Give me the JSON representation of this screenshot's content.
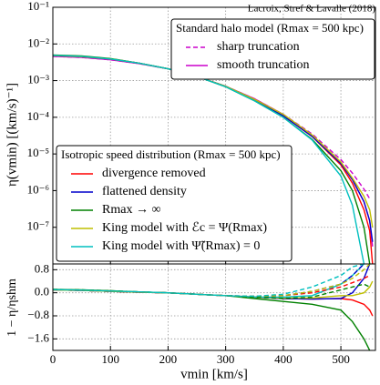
{
  "chart_data": [
    {
      "type": "line",
      "log_y": true,
      "grid": true,
      "annotation": "Lacroix, Stref & Lavalle (2018)",
      "y_label": "η(vmin) [(km/s)⁻¹]",
      "legend_titles": [
        "Standard halo model (Rmax = 500 kpc)",
        "Isotropic speed distribution (Rmax = 500 kpc)"
      ],
      "x": [
        0,
        50,
        100,
        150,
        200,
        250,
        300,
        350,
        400,
        450,
        500,
        520,
        540,
        550,
        555
      ],
      "xlim": [
        0,
        560
      ],
      "ylim": [
        1e-08,
        0.1
      ],
      "yticks": [
        {
          "value": 0.1,
          "label": "10⁻¹"
        },
        {
          "value": 0.01,
          "label": "10⁻²"
        },
        {
          "value": 0.001,
          "label": "10⁻³"
        },
        {
          "value": 0.0001,
          "label": "10⁻⁴"
        },
        {
          "value": 1e-05,
          "label": "10⁻⁵"
        },
        {
          "value": 1e-06,
          "label": "10⁻⁶"
        },
        {
          "value": 1e-07,
          "label": "10⁻⁷"
        }
      ],
      "series": [
        {
          "name": "sharp truncation",
          "color": "#cc00cc",
          "dash": true,
          "legend": 0,
          "values": [
            0.0046,
            0.0043,
            0.0037,
            0.0029,
            0.0021,
            0.0013,
            0.0007,
            0.00032,
            0.00012,
            3.5e-05,
            7e-06,
            3e-06,
            1.1e-06,
            6e-07,
            null
          ]
        },
        {
          "name": "smooth truncation",
          "color": "#cc00cc",
          "dash": false,
          "legend": 0,
          "values": [
            0.0046,
            0.0043,
            0.0037,
            0.0029,
            0.0021,
            0.0013,
            0.0007,
            0.00032,
            0.00012,
            3.2e-05,
            5.5e-06,
            2e-06,
            5e-07,
            1.5e-07,
            3e-08
          ]
        },
        {
          "name": "divergence removed",
          "color": "#ff0000",
          "dash": false,
          "legend": 1,
          "values": [
            0.0048,
            0.0045,
            0.0039,
            0.003,
            0.0021,
            0.0013,
            0.0007,
            0.0003,
            0.00011,
            3e-05,
            5e-06,
            1.6e-06,
            3e-07,
            8e-08,
            1e-08
          ]
        },
        {
          "name": "flattened density",
          "color": "#0000cc",
          "dash": false,
          "legend": 1,
          "values": [
            0.0048,
            0.0045,
            0.0039,
            0.003,
            0.0021,
            0.0013,
            0.0007,
            0.0003,
            0.00011,
            3e-05,
            5.5e-06,
            2e-06,
            5e-07,
            1.5e-07,
            4e-08
          ]
        },
        {
          "name": "Rmax → ∞",
          "color": "#008000",
          "dash": false,
          "legend": 1,
          "values": [
            0.005,
            0.0047,
            0.004,
            0.003,
            0.0021,
            0.0013,
            0.00068,
            0.00028,
            0.0001,
            2.5e-05,
            3.5e-06,
            1e-06,
            1e-07,
            1e-08,
            null
          ]
        },
        {
          "name": "King model with ℰc = Ψ(Rmax)",
          "color": "#bfbf00",
          "dash": false,
          "legend": 1,
          "values": [
            0.0048,
            0.0045,
            0.0039,
            0.003,
            0.0021,
            0.0013,
            0.0007,
            0.00031,
            0.00012,
            3.3e-05,
            6e-06,
            2.2e-06,
            7e-07,
            3e-07,
            1e-07
          ]
        },
        {
          "name": "King model with Ψ̃(Rmax) = 0",
          "color": "#00bfbf",
          "dash": false,
          "legend": 1,
          "values": [
            0.0049,
            0.0046,
            0.0039,
            0.003,
            0.0021,
            0.0013,
            0.00068,
            0.00028,
            0.0001,
            2.4e-05,
            2.5e-06,
            4e-07,
            1e-08,
            null,
            null
          ]
        }
      ]
    },
    {
      "type": "line",
      "log_y": false,
      "grid": true,
      "x_label": "vmin [km/s]",
      "y_label": "1 − η/ηshm",
      "x": [
        0,
        50,
        100,
        150,
        200,
        250,
        300,
        350,
        400,
        450,
        500,
        520,
        540,
        550,
        555
      ],
      "xlim": [
        0,
        560
      ],
      "xticks": [
        0,
        100,
        200,
        300,
        400,
        500
      ],
      "ylim": [
        -2.0,
        1.0
      ],
      "yticks": [
        {
          "value": 0.8,
          "label": "0.8"
        },
        {
          "value": 0,
          "label": "0.0"
        },
        {
          "value": -0.8,
          "label": "−0.8"
        },
        {
          "value": -1.6,
          "label": "−1.6"
        }
      ],
      "series": [
        {
          "color": "#ff0000",
          "dash": false,
          "values": [
            0.1,
            0.08,
            0.05,
            0.02,
            0.0,
            -0.05,
            -0.1,
            -0.15,
            -0.2,
            -0.22,
            -0.2,
            -0.25,
            -0.4,
            -0.6,
            -0.8
          ]
        },
        {
          "color": "#0000cc",
          "dash": false,
          "values": [
            0.1,
            0.08,
            0.05,
            0.02,
            0.0,
            -0.05,
            -0.1,
            -0.15,
            -0.2,
            -0.22,
            -0.2,
            0.0,
            0.5,
            1.0,
            null
          ]
        },
        {
          "color": "#008000",
          "dash": false,
          "values": [
            0.12,
            0.1,
            0.07,
            0.03,
            0.0,
            -0.05,
            -0.1,
            -0.2,
            -0.3,
            -0.4,
            -0.6,
            -1.0,
            -1.6,
            -2.0,
            null
          ]
        },
        {
          "color": "#bfbf00",
          "dash": false,
          "values": [
            0.1,
            0.08,
            0.05,
            0.02,
            0.0,
            -0.05,
            -0.1,
            -0.15,
            -0.18,
            -0.18,
            -0.1,
            -0.1,
            0.0,
            0.2,
            0.4
          ]
        },
        {
          "color": "#00bfbf",
          "dash": false,
          "values": [
            0.11,
            0.09,
            0.06,
            0.03,
            0.0,
            -0.05,
            -0.1,
            -0.15,
            -0.15,
            -0.1,
            0.3,
            0.6,
            1.0,
            null,
            null
          ]
        },
        {
          "color": "#ff0000",
          "dash": true,
          "values": [
            0.1,
            0.08,
            0.05,
            0.02,
            0.0,
            -0.05,
            -0.1,
            -0.12,
            -0.1,
            0.0,
            0.2,
            0.35,
            0.5,
            0.6,
            null
          ]
        },
        {
          "color": "#0000cc",
          "dash": true,
          "values": [
            0.1,
            0.08,
            0.05,
            0.02,
            0.0,
            -0.05,
            -0.1,
            -0.12,
            -0.1,
            0.05,
            0.3,
            0.6,
            1.0,
            null,
            null
          ]
        },
        {
          "color": "#008000",
          "dash": true,
          "values": [
            0.12,
            0.1,
            0.07,
            0.03,
            0.0,
            -0.05,
            -0.1,
            -0.15,
            -0.2,
            -0.15,
            0.1,
            0.2,
            0.3,
            0.2,
            null
          ]
        },
        {
          "color": "#bfbf00",
          "dash": true,
          "values": [
            0.1,
            0.08,
            0.05,
            0.02,
            0.0,
            -0.05,
            -0.1,
            -0.12,
            -0.1,
            0.05,
            0.3,
            0.5,
            0.8,
            1.0,
            null
          ]
        },
        {
          "color": "#00bfbf",
          "dash": true,
          "values": [
            0.11,
            0.09,
            0.06,
            0.03,
            0.0,
            -0.05,
            -0.1,
            -0.12,
            -0.05,
            0.2,
            0.6,
            0.9,
            1.0,
            null,
            null
          ]
        }
      ]
    }
  ]
}
